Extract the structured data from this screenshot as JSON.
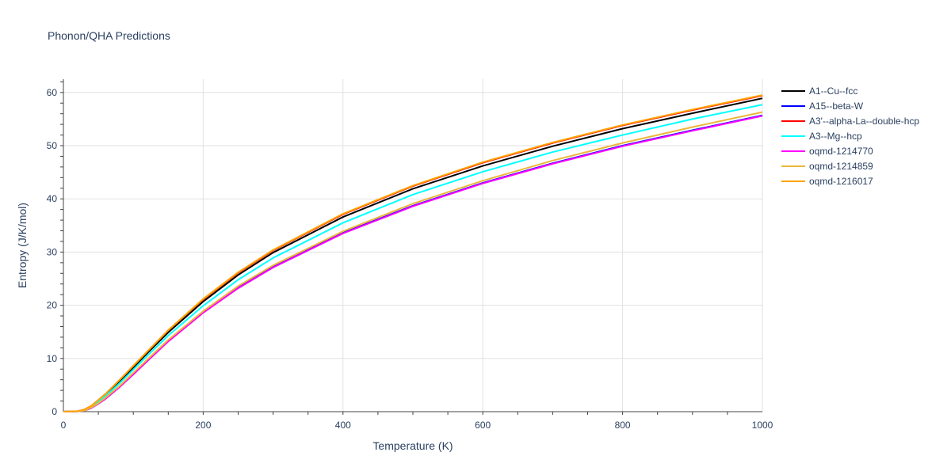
{
  "chart_data": {
    "type": "line",
    "title": "Phonon/QHA Predictions",
    "xlabel": "Temperature (K)",
    "ylabel": "Entropy (J/K/mol)",
    "xlim": [
      0,
      1000
    ],
    "ylim": [
      0,
      62.5
    ],
    "x_ticks": [
      0,
      200,
      400,
      600,
      800,
      1000
    ],
    "y_ticks": [
      0,
      10,
      20,
      30,
      40,
      50,
      60
    ],
    "grid": true,
    "legend_position": "right",
    "series": [
      {
        "name": "A1--Cu--fcc",
        "color": "#000000",
        "x": [
          0,
          20,
          30,
          40,
          50,
          60,
          80,
          100,
          120,
          150,
          200,
          250,
          300,
          400,
          500,
          600,
          700,
          800,
          900,
          1000
        ],
        "y": [
          0,
          0.1,
          0.3,
          1.0,
          2.0,
          3.1,
          5.6,
          8.3,
          11.0,
          14.9,
          20.7,
          25.7,
          29.9,
          36.6,
          41.9,
          46.2,
          49.9,
          53.2,
          56.1,
          58.9
        ]
      },
      {
        "name": "A15--beta-W",
        "color": "#0000ff",
        "x": [
          0,
          20,
          30,
          40,
          50,
          60,
          80,
          100,
          120,
          150,
          200,
          250,
          300,
          400,
          500,
          600,
          700,
          800,
          900,
          1000
        ],
        "y": [
          0,
          0.05,
          0.2,
          0.7,
          1.5,
          2.4,
          4.6,
          7.1,
          9.6,
          13.3,
          18.7,
          23.3,
          27.2,
          33.6,
          38.7,
          43.0,
          46.7,
          50.0,
          52.9,
          55.7
        ]
      },
      {
        "name": "A3'--alpha-La--double-hcp",
        "color": "#ff0000",
        "x": [
          0,
          20,
          30,
          40,
          50,
          60,
          80,
          100,
          120,
          150,
          200,
          250,
          300,
          400,
          500,
          600,
          700,
          800,
          900,
          1000
        ],
        "y": [
          0,
          0.1,
          0.4,
          1.1,
          2.2,
          3.3,
          5.9,
          8.6,
          11.3,
          15.3,
          21.1,
          26.1,
          30.3,
          37.1,
          42.4,
          46.8,
          50.5,
          53.8,
          56.7,
          59.4
        ]
      },
      {
        "name": "A3--Mg--hcp",
        "color": "#00ffff",
        "x": [
          0,
          20,
          30,
          40,
          50,
          60,
          80,
          100,
          120,
          150,
          200,
          250,
          300,
          400,
          500,
          600,
          700,
          800,
          900,
          1000
        ],
        "y": [
          0,
          0.1,
          0.3,
          0.9,
          1.9,
          2.9,
          5.3,
          7.9,
          10.5,
          14.3,
          19.9,
          24.8,
          28.9,
          35.5,
          40.8,
          45.1,
          48.8,
          52.0,
          55.0,
          57.7
        ]
      },
      {
        "name": "oqmd-1214770",
        "color": "#ff00ff",
        "x": [
          0,
          20,
          30,
          40,
          50,
          60,
          80,
          100,
          120,
          150,
          200,
          250,
          300,
          400,
          500,
          600,
          700,
          800,
          900,
          1000
        ],
        "y": [
          0,
          0.05,
          0.2,
          0.7,
          1.5,
          2.4,
          4.6,
          7.0,
          9.5,
          13.2,
          18.6,
          23.2,
          27.1,
          33.5,
          38.6,
          42.9,
          46.6,
          49.9,
          52.8,
          55.6
        ]
      },
      {
        "name": "oqmd-1214859",
        "color": "#ebb73a",
        "x": [
          0,
          20,
          30,
          40,
          50,
          60,
          80,
          100,
          120,
          150,
          200,
          250,
          300,
          400,
          500,
          600,
          700,
          800,
          900,
          1000
        ],
        "y": [
          0,
          0.05,
          0.2,
          0.8,
          1.6,
          2.6,
          4.8,
          7.3,
          9.8,
          13.5,
          18.9,
          23.6,
          27.5,
          33.9,
          39.1,
          43.4,
          47.2,
          50.5,
          53.5,
          56.3
        ]
      },
      {
        "name": "oqmd-1216017",
        "color": "#ffa500",
        "x": [
          0,
          20,
          30,
          40,
          50,
          60,
          80,
          100,
          120,
          150,
          200,
          250,
          300,
          400,
          500,
          600,
          700,
          800,
          900,
          1000
        ],
        "y": [
          0,
          0.1,
          0.4,
          1.1,
          2.2,
          3.3,
          5.9,
          8.6,
          11.3,
          15.3,
          21.2,
          26.2,
          30.4,
          37.2,
          42.5,
          46.9,
          50.6,
          53.9,
          56.8,
          59.5
        ]
      }
    ]
  }
}
